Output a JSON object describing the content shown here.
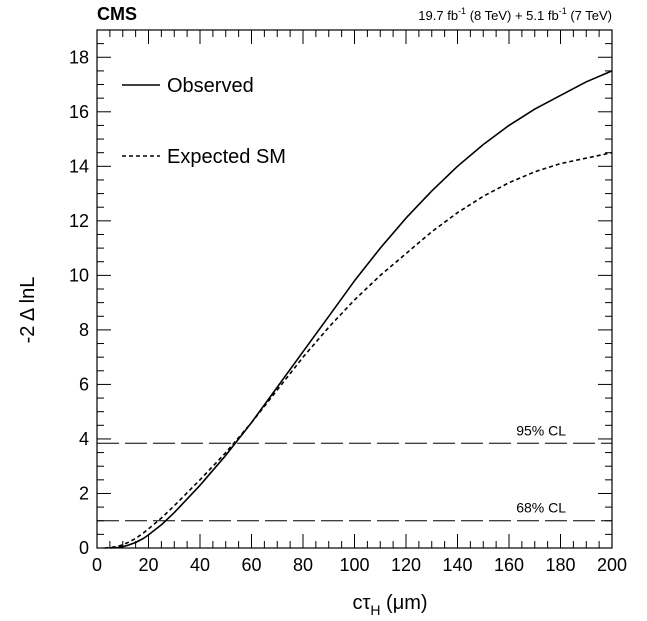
{
  "header": {
    "experiment": "CMS",
    "lumi_1_prefix": "19.7 fb",
    "lumi_1_sup": "-1",
    "lumi_1_suffix": " (8 TeV) + 5.1 fb",
    "lumi_2_sup": "-1",
    "lumi_2_suffix": " (7 TeV)"
  },
  "chart_data": {
    "type": "line",
    "xlabel_prefix": "cτ",
    "xlabel_sub": "H",
    "xlabel_suffix": " (μm)",
    "ylabel": "-2 Δ lnL",
    "xlim": [
      0,
      200
    ],
    "ylim": [
      0,
      19
    ],
    "xticks": [
      0,
      20,
      40,
      60,
      80,
      100,
      120,
      140,
      160,
      180,
      200
    ],
    "yticks": [
      0,
      2,
      4,
      6,
      8,
      10,
      12,
      14,
      16,
      18
    ],
    "grid": false,
    "legend_position": "top-left",
    "series": [
      {
        "name": "Observed",
        "style": "solid",
        "x": [
          5,
          8,
          10,
          12,
          15,
          18,
          20,
          25,
          30,
          40,
          50,
          60,
          70,
          80,
          90,
          100,
          110,
          120,
          130,
          140,
          150,
          160,
          170,
          180,
          190,
          200
        ],
        "y": [
          0.0,
          0.02,
          0.05,
          0.1,
          0.2,
          0.35,
          0.48,
          0.85,
          1.3,
          2.3,
          3.4,
          4.6,
          5.9,
          7.2,
          8.5,
          9.8,
          11.0,
          12.1,
          13.1,
          14.0,
          14.8,
          15.5,
          16.1,
          16.6,
          17.1,
          17.5
        ]
      },
      {
        "name": "Expected SM",
        "style": "dashed",
        "x": [
          3,
          5,
          8,
          10,
          12,
          15,
          18,
          20,
          25,
          30,
          40,
          50,
          60,
          70,
          80,
          90,
          100,
          110,
          120,
          130,
          140,
          150,
          160,
          170,
          180,
          190,
          200
        ],
        "y": [
          0.0,
          0.02,
          0.06,
          0.12,
          0.2,
          0.35,
          0.55,
          0.7,
          1.1,
          1.55,
          2.5,
          3.5,
          4.6,
          5.8,
          7.0,
          8.1,
          9.1,
          10.0,
          10.8,
          11.6,
          12.3,
          12.9,
          13.4,
          13.8,
          14.1,
          14.3,
          14.5
        ]
      }
    ],
    "reference_lines": [
      {
        "label": "95% CL",
        "y": 3.84
      },
      {
        "label": "68% CL",
        "y": 1.0
      }
    ]
  }
}
